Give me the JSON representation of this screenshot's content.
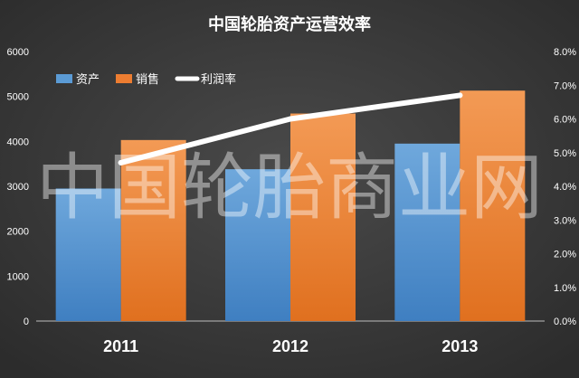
{
  "chart_data": {
    "type": "bar+line",
    "title": "中国轮胎资产运营效率",
    "categories": [
      "2011",
      "2012",
      "2013"
    ],
    "series": [
      {
        "name": "资产",
        "type": "bar",
        "axis": "left",
        "color": "#5b9bd5",
        "values": [
          2950,
          3380,
          3950
        ]
      },
      {
        "name": "销售",
        "type": "bar",
        "axis": "left",
        "color": "#ed7d31",
        "values": [
          4030,
          4620,
          5130
        ]
      },
      {
        "name": "利润率",
        "type": "line",
        "axis": "right",
        "color": "#ffffff",
        "values": [
          4.7,
          6.0,
          6.7
        ]
      }
    ],
    "y_left": {
      "min": 0,
      "max": 6000,
      "ticks": [
        0,
        1000,
        2000,
        3000,
        4000,
        5000,
        6000
      ]
    },
    "y_right": {
      "min": 0,
      "max": 8.0,
      "ticks": [
        "0.0%",
        "1.0%",
        "2.0%",
        "3.0%",
        "4.0%",
        "5.0%",
        "6.0%",
        "7.0%",
        "8.0%"
      ]
    },
    "grid": false,
    "legend_position": "top-left",
    "watermark": "中国轮胎商业网",
    "background": "#3a3a3a"
  }
}
